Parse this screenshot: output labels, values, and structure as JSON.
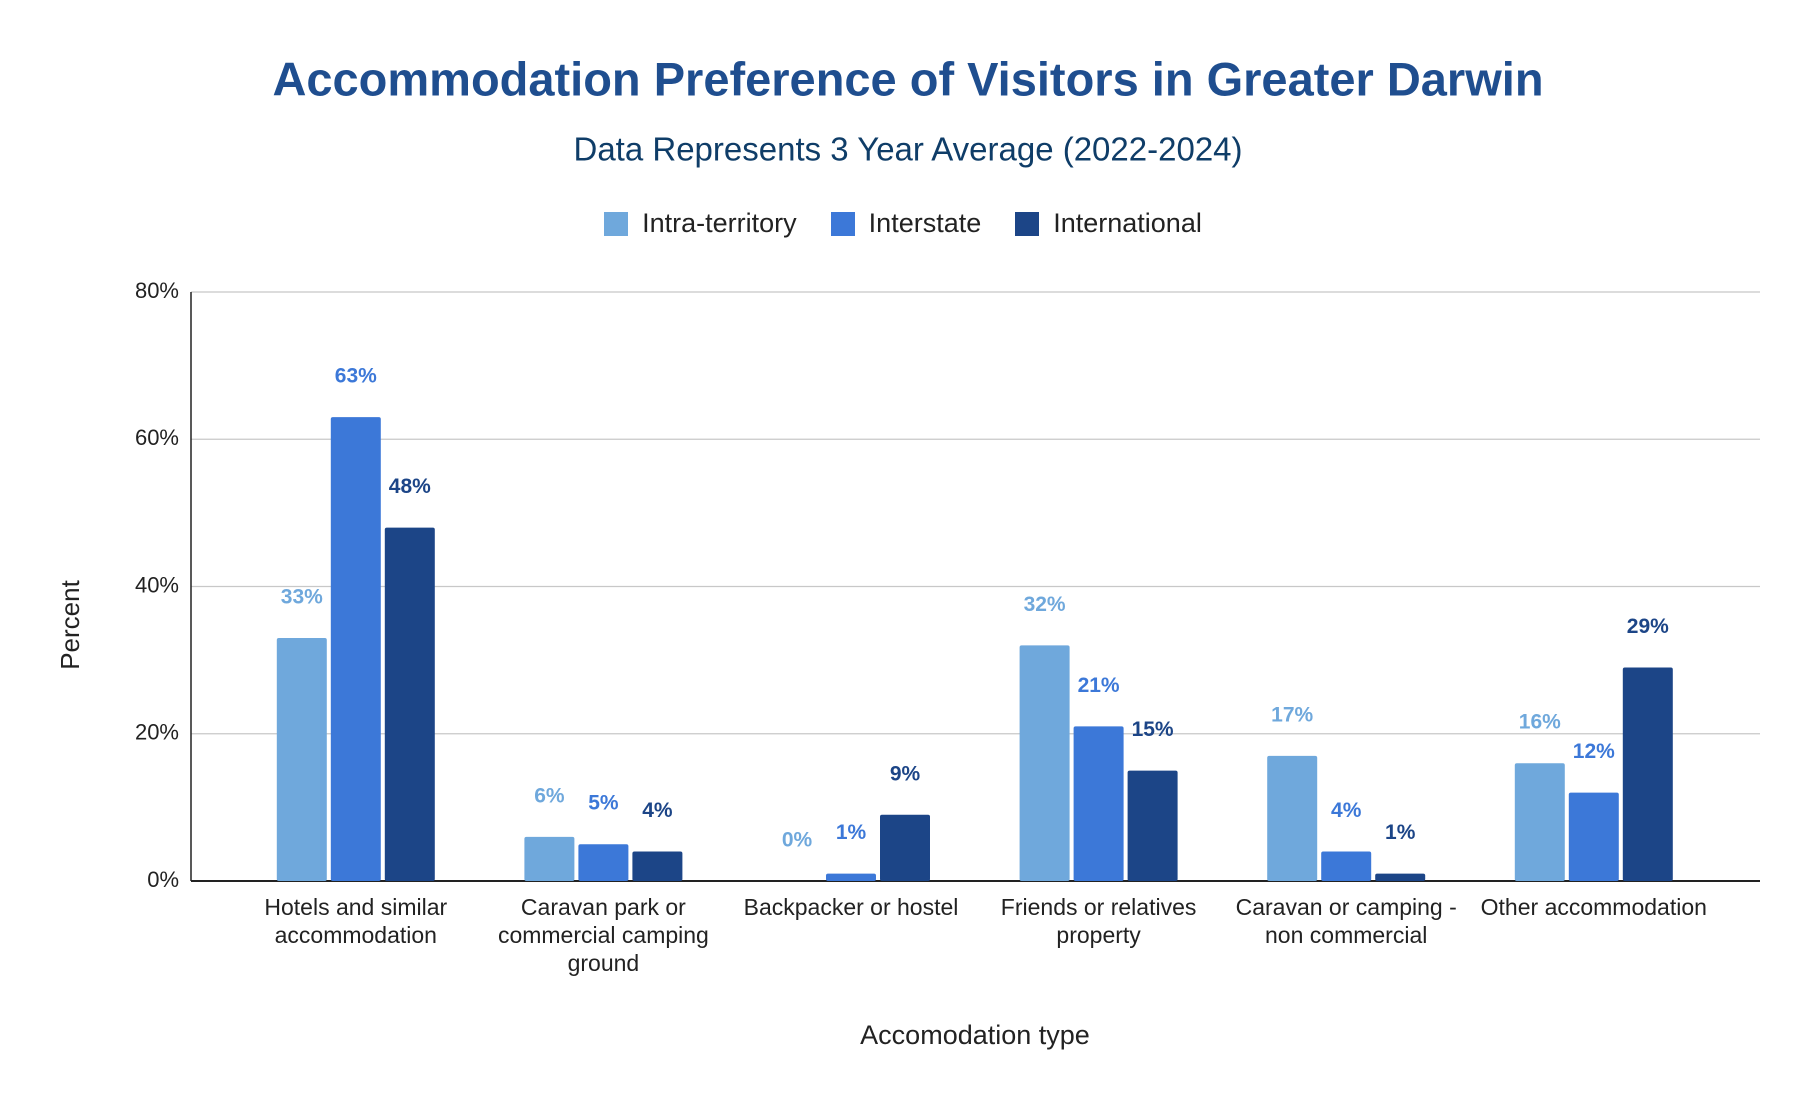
{
  "chart_data": {
    "type": "bar",
    "title": "Accommodation Preference of Visitors in Greater Darwin",
    "subtitle": "Data Represents 3 Year Average (2022-2024)",
    "x_label": "Accomodation type",
    "y_label": "Percent",
    "categories": [
      "Hotels and similar accommodation",
      "Caravan park or commercial camping ground",
      "Backpacker or hostel",
      "Friends or relatives property",
      "Caravan or camping - non commercial",
      "Other accommodation"
    ],
    "series": [
      {
        "name": "Intra-territory",
        "color": "#6fa8dc",
        "values": [
          33,
          6,
          0,
          32,
          17,
          16
        ],
        "value_labels": [
          "33%",
          "6%",
          "0%",
          "32%",
          "17%",
          "16%"
        ]
      },
      {
        "name": "Interstate",
        "color": "#3c78d8",
        "values": [
          63,
          5,
          1,
          21,
          4,
          12
        ],
        "value_labels": [
          "63%",
          "5%",
          "1%",
          "21%",
          "4%",
          "12%"
        ]
      },
      {
        "name": "International",
        "color": "#1c4587",
        "values": [
          48,
          4,
          9,
          15,
          1,
          29
        ],
        "value_labels": [
          "48%",
          "4%",
          "9%",
          "15%",
          "1%",
          "29%"
        ]
      }
    ],
    "ylim": [
      0,
      80
    ],
    "yticks": [
      {
        "value": 0,
        "label": "0%"
      },
      {
        "value": 20,
        "label": "20%"
      },
      {
        "value": 40,
        "label": "40%"
      },
      {
        "value": 60,
        "label": "60%"
      },
      {
        "value": 80,
        "label": "80%"
      }
    ],
    "grid": true
  }
}
